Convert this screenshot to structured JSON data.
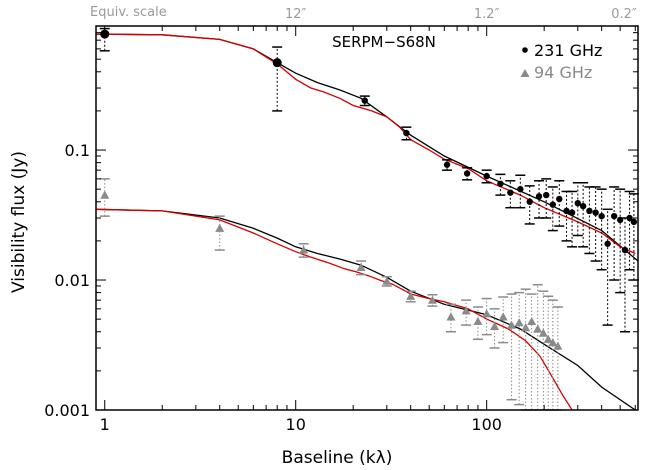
{
  "chart_data": {
    "type": "scatter",
    "title": "SERPM−S68N",
    "xlabel": "Baseline (kλ)",
    "ylabel": "Visibility flux (Jy)",
    "xscale": "log",
    "yscale": "log",
    "xlim": [
      0.9,
      620
    ],
    "ylim": [
      0.001,
      0.9
    ],
    "x_ticks": [
      1,
      10,
      100
    ],
    "x_tick_labels": [
      "1",
      "10",
      "100"
    ],
    "y_ticks": [
      0.001,
      0.01,
      0.1
    ],
    "y_tick_labels": [
      "0.001",
      "0.01",
      "0.1"
    ],
    "top_axis": {
      "label": "Equiv. scale",
      "ticks": [
        {
          "label": "12″",
          "x": 10
        },
        {
          "label": "1.2″",
          "x": 100
        },
        {
          "label": "0.2″",
          "x": 600
        }
      ]
    },
    "legend": {
      "position": "top-right",
      "entries": [
        {
          "label": "231 GHz",
          "symbol": "•",
          "color": "#000000"
        },
        {
          "label": "94 GHz",
          "symbol": "▲",
          "color": "#8a8a8a"
        }
      ]
    },
    "series": [
      {
        "name": "231 GHz",
        "marker": "circle",
        "color": "#000000",
        "points": [
          {
            "x": 1.0,
            "y": 0.78,
            "lo": 0.58,
            "hi": 0.86
          },
          {
            "x": 8,
            "y": 0.47,
            "lo": 0.2,
            "hi": 0.62
          },
          {
            "x": 23,
            "y": 0.24,
            "lo": 0.22,
            "hi": 0.26
          },
          {
            "x": 38,
            "y": 0.135,
            "lo": 0.12,
            "hi": 0.15
          },
          {
            "x": 62,
            "y": 0.077,
            "lo": 0.07,
            "hi": 0.084
          },
          {
            "x": 79,
            "y": 0.066,
            "lo": 0.059,
            "hi": 0.073
          },
          {
            "x": 100,
            "y": 0.063,
            "lo": 0.056,
            "hi": 0.07
          },
          {
            "x": 118,
            "y": 0.055,
            "lo": 0.045,
            "hi": 0.065
          },
          {
            "x": 133,
            "y": 0.047,
            "lo": 0.036,
            "hi": 0.058
          },
          {
            "x": 150,
            "y": 0.05,
            "lo": 0.036,
            "hi": 0.064
          },
          {
            "x": 168,
            "y": 0.04,
            "lo": 0.027,
            "hi": 0.053
          },
          {
            "x": 188,
            "y": 0.044,
            "lo": 0.03,
            "hi": 0.058
          },
          {
            "x": 205,
            "y": 0.045,
            "lo": 0.03,
            "hi": 0.06
          },
          {
            "x": 222,
            "y": 0.038,
            "lo": 0.024,
            "hi": 0.052
          },
          {
            "x": 240,
            "y": 0.042,
            "lo": 0.026,
            "hi": 0.058
          },
          {
            "x": 262,
            "y": 0.034,
            "lo": 0.02,
            "hi": 0.048
          },
          {
            "x": 280,
            "y": 0.033,
            "lo": 0.018,
            "hi": 0.048
          },
          {
            "x": 300,
            "y": 0.039,
            "lo": 0.022,
            "hi": 0.056
          },
          {
            "x": 320,
            "y": 0.037,
            "lo": 0.018,
            "hi": 0.056
          },
          {
            "x": 345,
            "y": 0.034,
            "lo": 0.016,
            "hi": 0.052
          },
          {
            "x": 372,
            "y": 0.033,
            "lo": 0.014,
            "hi": 0.052
          },
          {
            "x": 400,
            "y": 0.031,
            "lo": 0.012,
            "hi": 0.05
          },
          {
            "x": 430,
            "y": 0.019,
            "lo": 0.0045,
            "hi": 0.035
          },
          {
            "x": 465,
            "y": 0.031,
            "lo": 0.01,
            "hi": 0.052
          },
          {
            "x": 500,
            "y": 0.029,
            "lo": 0.008,
            "hi": 0.05
          },
          {
            "x": 530,
            "y": 0.017,
            "lo": 0.004,
            "hi": 0.03
          },
          {
            "x": 560,
            "y": 0.03,
            "lo": 0.012,
            "hi": 0.048
          },
          {
            "x": 590,
            "y": 0.028,
            "lo": 0.01,
            "hi": 0.046
          }
        ]
      },
      {
        "name": "94 GHz",
        "marker": "triangle",
        "color": "#8a8a8a",
        "points": [
          {
            "x": 1.0,
            "y": 0.045,
            "lo": 0.031,
            "hi": 0.06
          },
          {
            "x": 4,
            "y": 0.025,
            "lo": 0.017,
            "hi": 0.031
          },
          {
            "x": 11,
            "y": 0.017,
            "lo": 0.015,
            "hi": 0.019
          },
          {
            "x": 22,
            "y": 0.0125,
            "lo": 0.011,
            "hi": 0.014
          },
          {
            "x": 30,
            "y": 0.0098,
            "lo": 0.009,
            "hi": 0.0106
          },
          {
            "x": 40,
            "y": 0.0075,
            "lo": 0.0068,
            "hi": 0.0082
          },
          {
            "x": 52,
            "y": 0.007,
            "lo": 0.0063,
            "hi": 0.0077
          },
          {
            "x": 65,
            "y": 0.0052,
            "lo": 0.004,
            "hi": 0.0065
          },
          {
            "x": 78,
            "y": 0.0058,
            "lo": 0.0045,
            "hi": 0.007
          },
          {
            "x": 90,
            "y": 0.0048,
            "lo": 0.0035,
            "hi": 0.0062
          },
          {
            "x": 100,
            "y": 0.0055,
            "lo": 0.0038,
            "hi": 0.0072
          },
          {
            "x": 110,
            "y": 0.0044,
            "lo": 0.003,
            "hi": 0.006
          },
          {
            "x": 122,
            "y": 0.0052,
            "lo": 0.0033,
            "hi": 0.0074
          },
          {
            "x": 135,
            "y": 0.0045,
            "lo": 0.0012,
            "hi": 0.0078
          },
          {
            "x": 148,
            "y": 0.0047,
            "lo": 0.0011,
            "hi": 0.008
          },
          {
            "x": 160,
            "y": 0.0043,
            "lo": 0.001,
            "hi": 0.0085
          },
          {
            "x": 172,
            "y": 0.0048,
            "lo": 0.001,
            "hi": 0.0078
          },
          {
            "x": 185,
            "y": 0.0042,
            "lo": 0.001,
            "hi": 0.0092
          },
          {
            "x": 198,
            "y": 0.0039,
            "lo": 0.001,
            "hi": 0.0082
          },
          {
            "x": 210,
            "y": 0.0035,
            "lo": 0.001,
            "hi": 0.0075
          },
          {
            "x": 222,
            "y": 0.0033,
            "lo": 0.001,
            "hi": 0.007
          },
          {
            "x": 236,
            "y": 0.0031,
            "lo": 0.001,
            "hi": 0.0062
          }
        ]
      }
    ],
    "models": [
      {
        "color": "#000000",
        "points": [
          [
            0.9,
            0.78
          ],
          [
            2,
            0.77
          ],
          [
            4,
            0.71
          ],
          [
            6,
            0.6
          ],
          [
            8,
            0.47
          ],
          [
            10,
            0.39
          ],
          [
            13,
            0.33
          ],
          [
            17,
            0.29
          ],
          [
            22,
            0.25
          ],
          [
            30,
            0.18
          ],
          [
            40,
            0.13
          ],
          [
            60,
            0.09
          ],
          [
            100,
            0.063
          ],
          [
            200,
            0.04
          ],
          [
            400,
            0.024
          ],
          [
            620,
            0.014
          ]
        ]
      },
      {
        "color": "#d40000",
        "points": [
          [
            0.9,
            0.78
          ],
          [
            2,
            0.77
          ],
          [
            4,
            0.71
          ],
          [
            6,
            0.6
          ],
          [
            8,
            0.46
          ],
          [
            10,
            0.35
          ],
          [
            12,
            0.3
          ],
          [
            14,
            0.28
          ],
          [
            17,
            0.25
          ],
          [
            20,
            0.22
          ],
          [
            25,
            0.2
          ],
          [
            30,
            0.18
          ],
          [
            35,
            0.15
          ],
          [
            40,
            0.12
          ],
          [
            50,
            0.1
          ],
          [
            60,
            0.085
          ],
          [
            80,
            0.072
          ],
          [
            100,
            0.058
          ],
          [
            150,
            0.045
          ],
          [
            200,
            0.036
          ],
          [
            300,
            0.028
          ],
          [
            400,
            0.023
          ],
          [
            500,
            0.018
          ],
          [
            600,
            0.016
          ]
        ]
      },
      {
        "color": "#000000",
        "points": [
          [
            0.9,
            0.035
          ],
          [
            2,
            0.034
          ],
          [
            4,
            0.03
          ],
          [
            6,
            0.025
          ],
          [
            8,
            0.021
          ],
          [
            10,
            0.018
          ],
          [
            13,
            0.016
          ],
          [
            17,
            0.0145
          ],
          [
            22,
            0.013
          ],
          [
            30,
            0.0105
          ],
          [
            40,
            0.0082
          ],
          [
            60,
            0.0065
          ],
          [
            100,
            0.0054
          ],
          [
            150,
            0.0042
          ],
          [
            200,
            0.0032
          ],
          [
            300,
            0.0022
          ],
          [
            400,
            0.0015
          ],
          [
            600,
            0.001
          ]
        ]
      },
      {
        "color": "#d40000",
        "points": [
          [
            0.9,
            0.035
          ],
          [
            2,
            0.034
          ],
          [
            4,
            0.029
          ],
          [
            6,
            0.023
          ],
          [
            8,
            0.019
          ],
          [
            10,
            0.0165
          ],
          [
            12,
            0.015
          ],
          [
            15,
            0.0135
          ],
          [
            18,
            0.0122
          ],
          [
            21,
            0.0115
          ],
          [
            24,
            0.0108
          ],
          [
            28,
            0.0099
          ],
          [
            32,
            0.0093
          ],
          [
            36,
            0.0085
          ],
          [
            40,
            0.0078
          ],
          [
            50,
            0.0072
          ],
          [
            60,
            0.0068
          ],
          [
            80,
            0.006
          ],
          [
            100,
            0.005
          ],
          [
            130,
            0.0042
          ],
          [
            160,
            0.0034
          ],
          [
            190,
            0.0026
          ],
          [
            220,
            0.0018
          ],
          [
            250,
            0.0013
          ],
          [
            280,
            0.001
          ]
        ]
      }
    ]
  }
}
